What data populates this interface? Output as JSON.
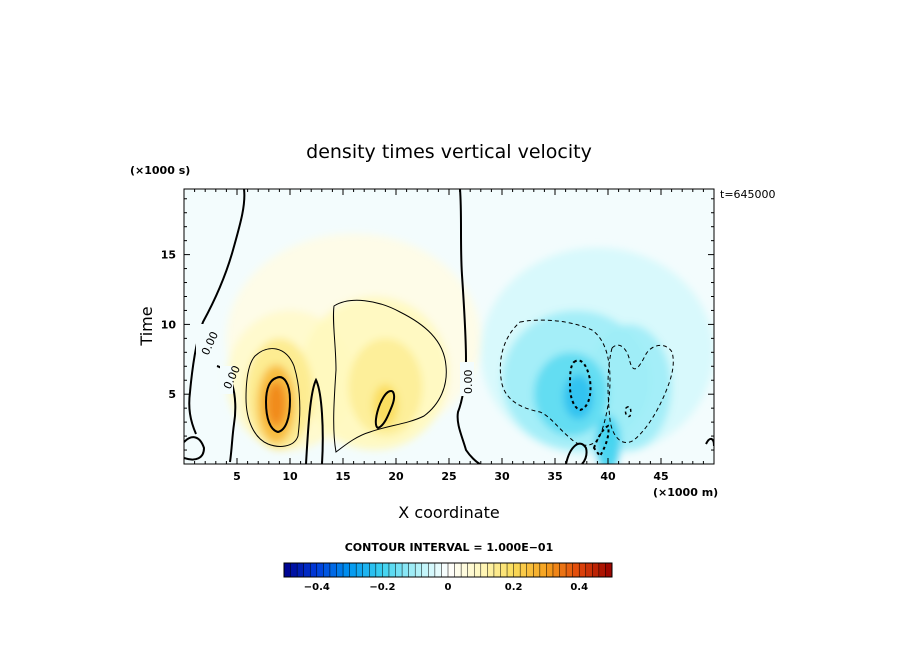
{
  "chart_data": {
    "type": "heatmap",
    "title": "density times vertical velocity",
    "xlabel": "X coordinate",
    "ylabel": "Time",
    "x_unit": "(×1000 m)",
    "y_unit": "(×1000 s)",
    "time_stamp": "t=645000",
    "xlim": [
      0,
      50
    ],
    "ylim": [
      0,
      19.7
    ],
    "x_ticks": [
      5,
      10,
      15,
      20,
      25,
      30,
      35,
      40,
      45
    ],
    "y_ticks": [
      5,
      10,
      15
    ],
    "contour_interval_text": "CONTOUR INTERVAL = 1.000E−01",
    "contour_interval": 0.1,
    "zero_contour_labels": [
      "0.00",
      "0.00",
      "0.00"
    ],
    "colorbar": {
      "range": [
        -0.5,
        0.5
      ],
      "tick_values": [
        -0.4,
        -0.2,
        0,
        0.2,
        0.4
      ],
      "tick_labels": [
        "−0.4",
        "−0.2",
        "0",
        "0.2",
        "0.4"
      ]
    },
    "features": [
      {
        "name": "positive core left",
        "x": 8.7,
        "y": 4.3,
        "value": 0.3
      },
      {
        "name": "positive lobe left",
        "x": 9.0,
        "y": 7.0,
        "value": 0.12
      },
      {
        "name": "positive lobe center",
        "x": 19.0,
        "y": 6.5,
        "value": 0.12
      },
      {
        "name": "positive core center",
        "x": 19.0,
        "y": 4.0,
        "value": 0.2
      },
      {
        "name": "negative core",
        "x": 37.0,
        "y": 5.0,
        "value": -0.22
      },
      {
        "name": "negative lobe right",
        "x": 38.0,
        "y": 5.0,
        "value": -0.12
      }
    ]
  }
}
